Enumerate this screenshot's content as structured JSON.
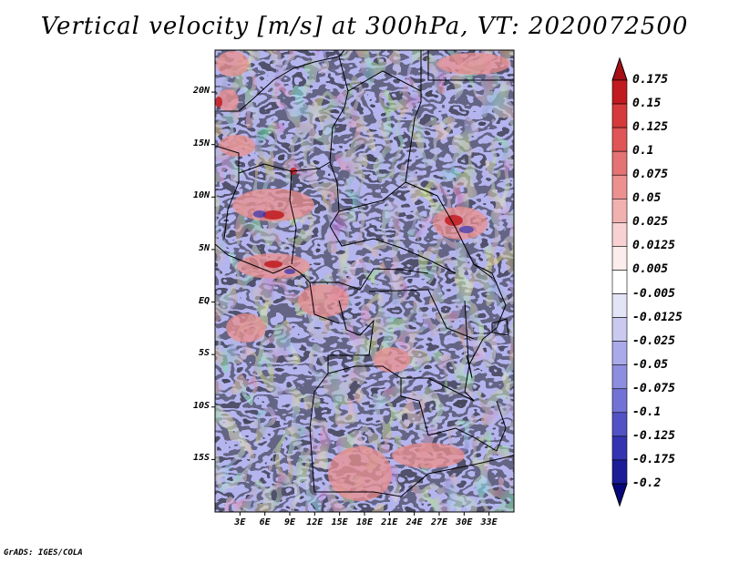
{
  "title": "Vertical velocity [m/s] at 300hPa, VT: 2020072500",
  "footer": "GrADS: IGES/COLA",
  "map": {
    "lon_range": [
      0,
      36
    ],
    "lat_range": [
      -20,
      24
    ],
    "y_ticks": [
      {
        "lat": 20,
        "label": "20N"
      },
      {
        "lat": 15,
        "label": "15N"
      },
      {
        "lat": 10,
        "label": "10N"
      },
      {
        "lat": 5,
        "label": "5N"
      },
      {
        "lat": 0,
        "label": "EQ"
      },
      {
        "lat": -5,
        "label": "5S"
      },
      {
        "lat": -10,
        "label": "10S"
      },
      {
        "lat": -15,
        "label": "15S"
      }
    ],
    "x_ticks": [
      {
        "lon": 3,
        "label": "3E"
      },
      {
        "lon": 6,
        "label": "6E"
      },
      {
        "lon": 9,
        "label": "9E"
      },
      {
        "lon": 12,
        "label": "12E"
      },
      {
        "lon": 15,
        "label": "15E"
      },
      {
        "lon": 18,
        "label": "18E"
      },
      {
        "lon": 21,
        "label": "21E"
      },
      {
        "lon": 24,
        "label": "24E"
      },
      {
        "lon": 27,
        "label": "27E"
      },
      {
        "lon": 30,
        "label": "30E"
      },
      {
        "lon": 33,
        "label": "33E"
      }
    ]
  },
  "colorbar": {
    "levels": [
      "0.175",
      "0.15",
      "0.125",
      "0.1",
      "0.075",
      "0.05",
      "0.025",
      "0.0125",
      "0.005",
      "-0.005",
      "-0.0125",
      "-0.025",
      "-0.05",
      "-0.075",
      "-0.1",
      "-0.125",
      "-0.175",
      "-0.2"
    ],
    "colors": [
      "#a50f15",
      "#c11a1f",
      "#d63a3a",
      "#e05555",
      "#e57373",
      "#ec9090",
      "#f2b1b1",
      "#f8d2d2",
      "#fcecec",
      "#ffffff",
      "#e4e4f7",
      "#cacaf1",
      "#aaaaea",
      "#8e8ee0",
      "#7272d6",
      "#5252c6",
      "#3434b2",
      "#1c1c98",
      "#08087a"
    ]
  }
}
